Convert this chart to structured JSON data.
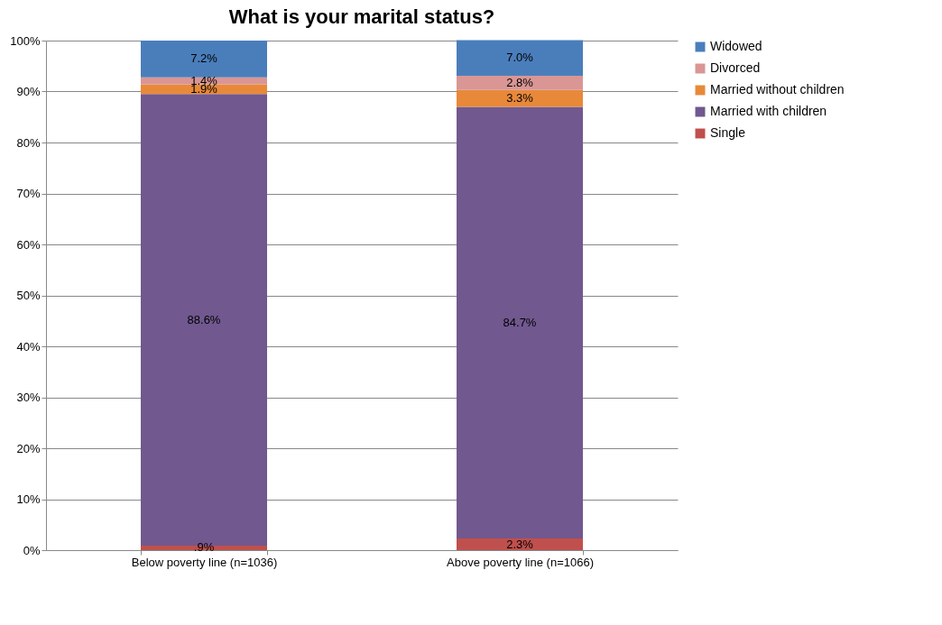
{
  "chart_data": {
    "type": "bar",
    "title": "What is your marital status?",
    "stacked": true,
    "categories": [
      "Below poverty line (n=1036)",
      "Above poverty line (n=1066)"
    ],
    "series": [
      {
        "name": "Single",
        "color": "#c0504d",
        "values": [
          0.9,
          2.3
        ],
        "value_labels": [
          ".9%",
          "2.3%"
        ]
      },
      {
        "name": "Married with children",
        "color": "#71588f",
        "values": [
          88.6,
          84.7
        ],
        "value_labels": [
          "88.6%",
          "84.7%"
        ]
      },
      {
        "name": "Married without children",
        "color": "#e8893a",
        "values": [
          1.9,
          3.3
        ],
        "value_labels": [
          "1.9%",
          "3.3%"
        ]
      },
      {
        "name": "Divorced",
        "color": "#d99694",
        "values": [
          1.4,
          2.8
        ],
        "value_labels": [
          "1.4%",
          "2.8%"
        ]
      },
      {
        "name": "Widowed",
        "color": "#4a7ebb",
        "values": [
          7.2,
          7.0
        ],
        "value_labels": [
          "7.2%",
          "7.0%"
        ]
      }
    ],
    "ylim": [
      0,
      100
    ],
    "yticks": [
      {
        "value": 0,
        "label": "0%"
      },
      {
        "value": 10,
        "label": "10%"
      },
      {
        "value": 20,
        "label": "20%"
      },
      {
        "value": 30,
        "label": "30%"
      },
      {
        "value": 40,
        "label": "40%"
      },
      {
        "value": 50,
        "label": "50%"
      },
      {
        "value": 60,
        "label": "60%"
      },
      {
        "value": 70,
        "label": "70%"
      },
      {
        "value": 80,
        "label": "80%"
      },
      {
        "value": 90,
        "label": "90%"
      },
      {
        "value": 100,
        "label": "100%"
      }
    ],
    "grid": "y",
    "legend": "right"
  }
}
